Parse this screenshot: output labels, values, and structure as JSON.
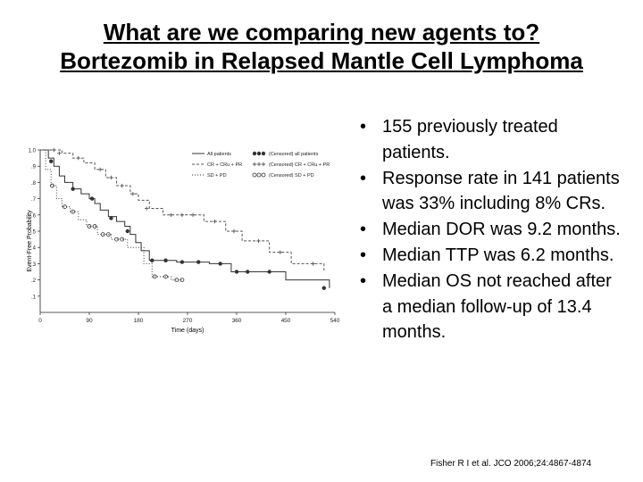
{
  "slide": {
    "title_line1": "What are we comparing new agents to?",
    "title_line2": "Bortezomib in Relapsed Mantle Cell Lymphoma"
  },
  "bullets": [
    "155 previously treated patients.",
    "Response rate in 141 patients was 33% including 8% CRs.",
    "Median DOR was 9.2 months.",
    "Median TTP was 6.2 months.",
    "Median OS not reached after a median follow-up of 13.4 months."
  ],
  "citation": "Fisher R I et al. JCO 2006;24:4867-4874",
  "chart_data": {
    "type": "line",
    "subtype": "kaplan-meier step",
    "xlabel": "Time (days)",
    "ylabel": "Event-Free Probability",
    "xlim": [
      0,
      540
    ],
    "ylim": [
      0,
      1.0
    ],
    "x_ticks": [
      0,
      90,
      180,
      270,
      360,
      450,
      540
    ],
    "x_tick_labels": [
      "0",
      "90",
      "180",
      "270",
      "360",
      "450",
      "540"
    ],
    "y_ticks": [
      0.1,
      0.2,
      0.3,
      0.4,
      0.5,
      0.6,
      0.7,
      0.8,
      0.9,
      1.0
    ],
    "y_tick_labels": [
      ".1",
      ".2",
      ".3",
      ".4",
      ".5",
      ".6",
      ".7",
      ".8",
      ".9",
      "1.0"
    ],
    "legend": [
      {
        "label": "All patients",
        "censor_label": "(Censored) all patients",
        "series": 0
      },
      {
        "label": "CR + CRu + PR",
        "censor_label": "(Censored) CR + CRu + PR",
        "series": 1
      },
      {
        "label": "SD + PD",
        "censor_label": "(Censored) SD + PD",
        "series": 2
      }
    ],
    "legend_position": "top-right",
    "series": [
      {
        "color": "#333333",
        "dash": "",
        "marker": "dot",
        "points": [
          [
            0,
            1.0
          ],
          [
            15,
            0.95
          ],
          [
            25,
            0.9
          ],
          [
            35,
            0.84
          ],
          [
            45,
            0.8
          ],
          [
            60,
            0.76
          ],
          [
            75,
            0.73
          ],
          [
            90,
            0.7
          ],
          [
            100,
            0.67
          ],
          [
            110,
            0.63
          ],
          [
            125,
            0.59
          ],
          [
            140,
            0.56
          ],
          [
            155,
            0.53
          ],
          [
            165,
            0.48
          ],
          [
            175,
            0.43
          ],
          [
            185,
            0.38
          ],
          [
            200,
            0.32
          ],
          [
            250,
            0.31
          ],
          [
            310,
            0.3
          ],
          [
            350,
            0.25
          ],
          [
            450,
            0.2
          ],
          [
            530,
            0.15
          ]
        ],
        "censored": [
          [
            20,
            0.93
          ],
          [
            60,
            0.76
          ],
          [
            95,
            0.7
          ],
          [
            130,
            0.58
          ],
          [
            160,
            0.5
          ],
          [
            205,
            0.32
          ],
          [
            230,
            0.32
          ],
          [
            260,
            0.31
          ],
          [
            290,
            0.31
          ],
          [
            330,
            0.3
          ],
          [
            360,
            0.25
          ],
          [
            380,
            0.25
          ],
          [
            420,
            0.25
          ],
          [
            520,
            0.15
          ]
        ]
      },
      {
        "color": "#555555",
        "dash": "3,2",
        "marker": "plus",
        "points": [
          [
            0,
            1.0
          ],
          [
            20,
            1.0
          ],
          [
            40,
            0.98
          ],
          [
            60,
            0.95
          ],
          [
            80,
            0.92
          ],
          [
            100,
            0.88
          ],
          [
            120,
            0.83
          ],
          [
            140,
            0.78
          ],
          [
            165,
            0.73
          ],
          [
            180,
            0.69
          ],
          [
            200,
            0.64
          ],
          [
            225,
            0.6
          ],
          [
            300,
            0.56
          ],
          [
            340,
            0.5
          ],
          [
            370,
            0.44
          ],
          [
            420,
            0.37
          ],
          [
            460,
            0.3
          ],
          [
            520,
            0.25
          ]
        ],
        "censored": [
          [
            25,
            1.0
          ],
          [
            35,
            0.98
          ],
          [
            70,
            0.95
          ],
          [
            110,
            0.88
          ],
          [
            130,
            0.83
          ],
          [
            150,
            0.78
          ],
          [
            170,
            0.73
          ],
          [
            195,
            0.64
          ],
          [
            240,
            0.6
          ],
          [
            260,
            0.6
          ],
          [
            280,
            0.6
          ],
          [
            320,
            0.56
          ],
          [
            355,
            0.5
          ],
          [
            400,
            0.44
          ],
          [
            440,
            0.37
          ],
          [
            500,
            0.3
          ]
        ]
      },
      {
        "color": "#333333",
        "dash": "1,2",
        "marker": "circle",
        "points": [
          [
            0,
            1.0
          ],
          [
            10,
            0.88
          ],
          [
            20,
            0.78
          ],
          [
            30,
            0.7
          ],
          [
            40,
            0.65
          ],
          [
            55,
            0.62
          ],
          [
            70,
            0.57
          ],
          [
            85,
            0.53
          ],
          [
            105,
            0.48
          ],
          [
            130,
            0.45
          ],
          [
            160,
            0.4
          ],
          [
            190,
            0.3
          ],
          [
            205,
            0.22
          ],
          [
            240,
            0.2
          ],
          [
            260,
            0.2
          ]
        ],
        "censored": [
          [
            22,
            0.78
          ],
          [
            45,
            0.65
          ],
          [
            60,
            0.62
          ],
          [
            90,
            0.53
          ],
          [
            100,
            0.53
          ],
          [
            115,
            0.48
          ],
          [
            125,
            0.48
          ],
          [
            140,
            0.45
          ],
          [
            150,
            0.45
          ],
          [
            210,
            0.22
          ],
          [
            230,
            0.22
          ],
          [
            250,
            0.2
          ],
          [
            260,
            0.2
          ]
        ]
      }
    ]
  }
}
